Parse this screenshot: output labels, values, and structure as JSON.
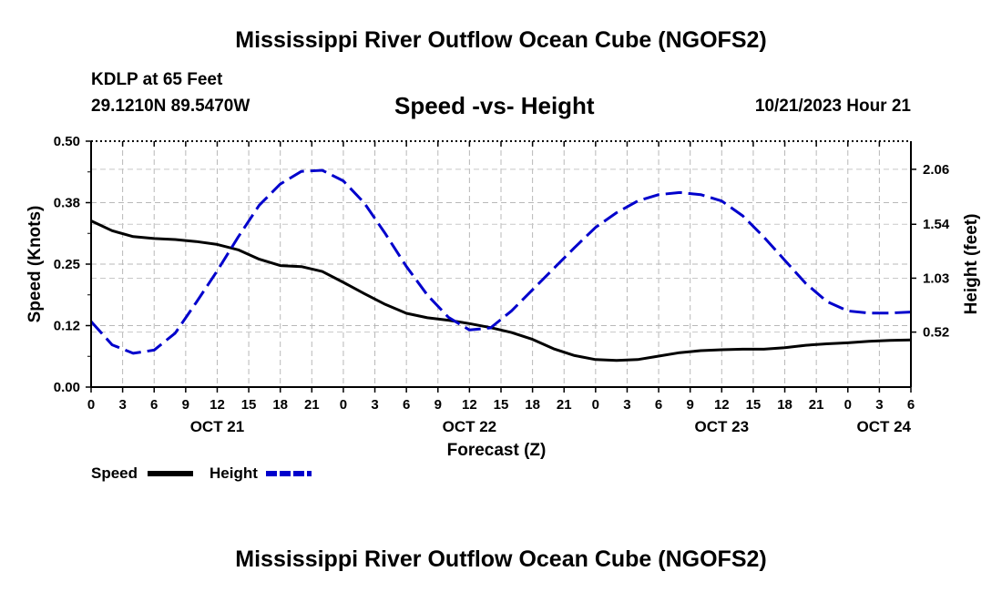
{
  "header": {
    "title": "Mississippi River Outflow Ocean Cube (NGOFS2)",
    "station": "KDLP at 65 Feet",
    "coords": "29.1210N  89.5470W",
    "subtitle": "Speed -vs- Height",
    "datetime": "10/21/2023 Hour 21",
    "bottom_title": "Mississippi River Outflow Ocean Cube (NGOFS2)"
  },
  "chart_data": {
    "type": "line",
    "title": "Speed -vs- Height",
    "xlabel": "Forecast (Z)",
    "ylabel": "Speed (Knots)",
    "y2label": "Height (feet)",
    "x_unit": "hours",
    "xlim": [
      0,
      78
    ],
    "ylim": [
      0,
      0.5
    ],
    "y2lim": [
      0,
      2.326
    ],
    "y_ticks": [
      "0.00",
      "0.12",
      "0.25",
      "0.38",
      "0.50"
    ],
    "y_tick_values": [
      0,
      0.125,
      0.25,
      0.375,
      0.5
    ],
    "y2_ticks": [
      "0.52",
      "1.03",
      "1.54",
      "2.06"
    ],
    "y2_tick_values": [
      0.52,
      1.03,
      1.54,
      2.06
    ],
    "x_tick_labels": [
      "0",
      "3",
      "6",
      "9",
      "12",
      "15",
      "18",
      "21",
      "0",
      "3",
      "6",
      "9",
      "12",
      "15",
      "18",
      "21",
      "0",
      "3",
      "6",
      "9",
      "12",
      "15",
      "18",
      "21",
      "0",
      "3",
      "6"
    ],
    "date_labels": [
      {
        "label": "OCT 21",
        "x": 12
      },
      {
        "label": "OCT 22",
        "x": 36
      },
      {
        "label": "OCT 23",
        "x": 60
      },
      {
        "label": "OCT 24",
        "x": 75
      }
    ],
    "grid": true,
    "series": [
      {
        "name": "Speed",
        "axis": "left",
        "color": "#000000",
        "style": "solid",
        "x": [
          0,
          2,
          4,
          6,
          8,
          10,
          12,
          14,
          16,
          18,
          20,
          22,
          24,
          26,
          28,
          30,
          32,
          34,
          36,
          38,
          40,
          42,
          44,
          46,
          48,
          50,
          52,
          54,
          56,
          58,
          60,
          62,
          64,
          66,
          68,
          70,
          72,
          74,
          76,
          78
        ],
        "values": [
          0.338,
          0.318,
          0.306,
          0.302,
          0.3,
          0.296,
          0.29,
          0.279,
          0.26,
          0.247,
          0.245,
          0.235,
          0.213,
          0.19,
          0.168,
          0.15,
          0.141,
          0.136,
          0.129,
          0.121,
          0.111,
          0.097,
          0.078,
          0.064,
          0.056,
          0.054,
          0.056,
          0.063,
          0.07,
          0.074,
          0.076,
          0.077,
          0.077,
          0.08,
          0.085,
          0.088,
          0.09,
          0.093,
          0.095,
          0.096
        ]
      },
      {
        "name": "Height",
        "axis": "right",
        "color": "#0000cc",
        "style": "dashed",
        "x": [
          0,
          2,
          4,
          6,
          8,
          10,
          12,
          14,
          16,
          18,
          20,
          22,
          24,
          26,
          28,
          30,
          32,
          34,
          36,
          38,
          40,
          42,
          44,
          46,
          48,
          50,
          52,
          54,
          56,
          58,
          60,
          62,
          64,
          66,
          68,
          70,
          72,
          74,
          76,
          78
        ],
        "values": [
          0.62,
          0.4,
          0.32,
          0.35,
          0.51,
          0.8,
          1.1,
          1.42,
          1.72,
          1.92,
          2.04,
          2.05,
          1.95,
          1.74,
          1.45,
          1.14,
          0.87,
          0.66,
          0.54,
          0.56,
          0.72,
          0.92,
          1.12,
          1.32,
          1.51,
          1.65,
          1.76,
          1.82,
          1.84,
          1.82,
          1.76,
          1.62,
          1.42,
          1.2,
          0.98,
          0.81,
          0.72,
          0.7,
          0.7,
          0.71
        ]
      }
    ],
    "legend": {
      "position": "bottom-left",
      "items": [
        "Speed",
        "Height"
      ]
    }
  }
}
